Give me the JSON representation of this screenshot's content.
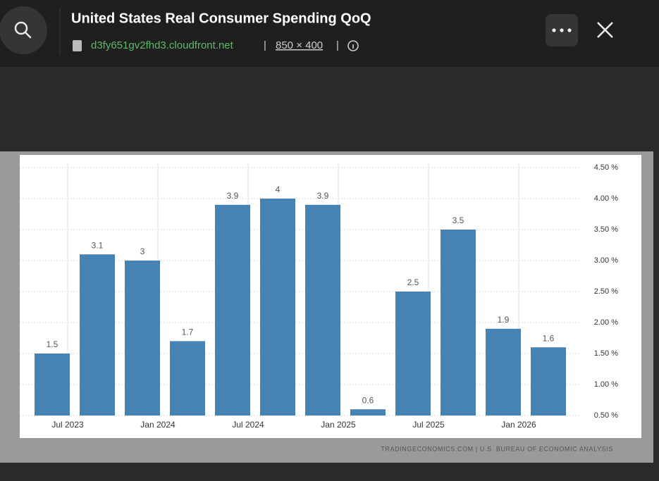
{
  "header": {
    "title": "United States Real Consumer Spending QoQ",
    "source": "d3fy651gv2fhd3.cloudfront.net",
    "separator": "|",
    "dimensions": "850 × 400"
  },
  "chart_data": {
    "type": "bar",
    "categories": [
      "Jul 2023",
      null,
      "Jan 2024",
      null,
      "Jul 2024",
      null,
      "Jan 2025",
      null,
      "Jul 2025",
      null,
      "Jan 2026",
      null
    ],
    "values": [
      1.5,
      3.1,
      3,
      1.7,
      3.9,
      4,
      3.9,
      0.6,
      2.5,
      3.5,
      1.9,
      1.6
    ],
    "color": "#4682b4",
    "ylim": [
      0.5,
      4.5
    ],
    "yticks": [
      {
        "value": 0.5,
        "label": "0.50 %"
      },
      {
        "value": 1,
        "label": "1.00 %"
      },
      {
        "value": 1.5,
        "label": "1.50 %"
      },
      {
        "value": 2,
        "label": "2.00 %"
      },
      {
        "value": 2.5,
        "label": "2.50 %"
      },
      {
        "value": 3,
        "label": "3.00 %"
      },
      {
        "value": 3.5,
        "label": "3.50 %"
      },
      {
        "value": 4,
        "label": "4.00 %"
      },
      {
        "value": 4.5,
        "label": "4.50 %"
      }
    ],
    "grid": true,
    "source": "TRADINGECONOMICS.COM | U.S. BUREAU OF ECONOMIC ANALYSIS"
  }
}
